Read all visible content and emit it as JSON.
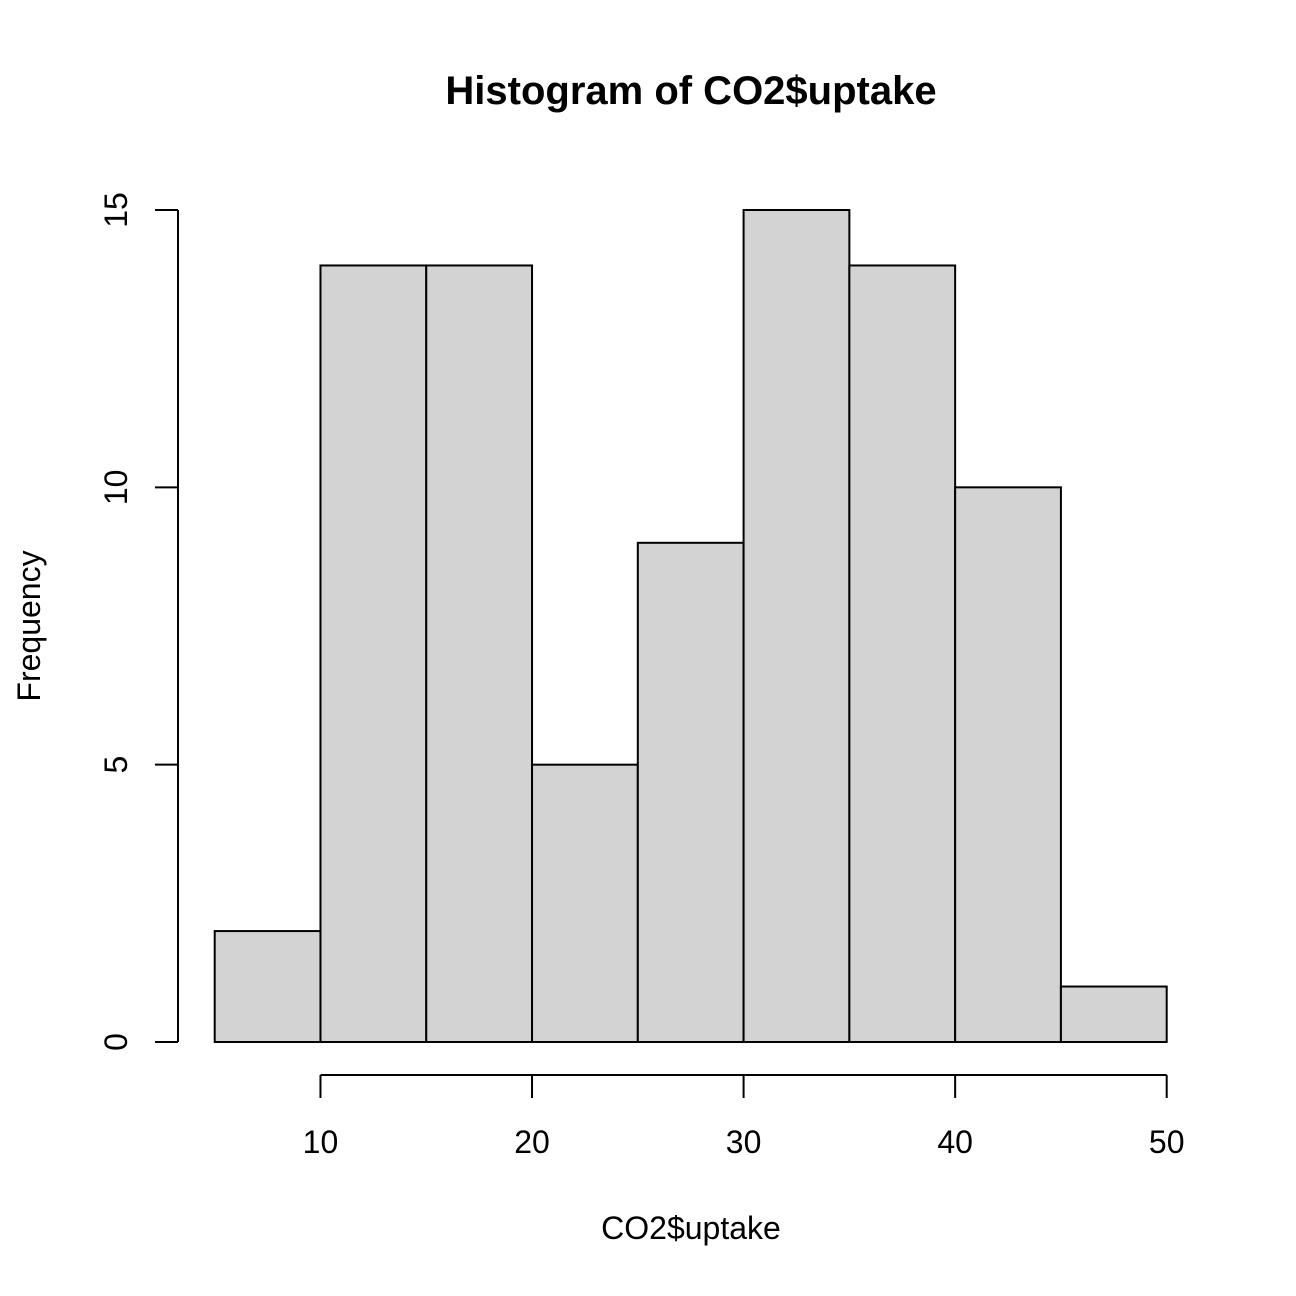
{
  "chart_data": {
    "type": "bar",
    "subtype": "histogram",
    "title": "Histogram of CO2$uptake",
    "xlabel": "CO2$uptake",
    "ylabel": "Frequency",
    "bins": [
      {
        "start": 5,
        "end": 10,
        "count": 2
      },
      {
        "start": 10,
        "end": 15,
        "count": 14
      },
      {
        "start": 15,
        "end": 20,
        "count": 14
      },
      {
        "start": 20,
        "end": 25,
        "count": 5
      },
      {
        "start": 25,
        "end": 30,
        "count": 9
      },
      {
        "start": 30,
        "end": 35,
        "count": 15
      },
      {
        "start": 35,
        "end": 40,
        "count": 14
      },
      {
        "start": 40,
        "end": 45,
        "count": 10
      },
      {
        "start": 45,
        "end": 50,
        "count": 1
      }
    ],
    "xlim": [
      5,
      50
    ],
    "ylim": [
      0,
      15
    ],
    "x_ticks": [
      10,
      20,
      30,
      40,
      50
    ],
    "y_ticks": [
      0,
      5,
      10,
      15
    ],
    "bar_fill": "#d3d3d3",
    "bar_stroke": "#000000",
    "grid": false,
    "legend": "none"
  }
}
